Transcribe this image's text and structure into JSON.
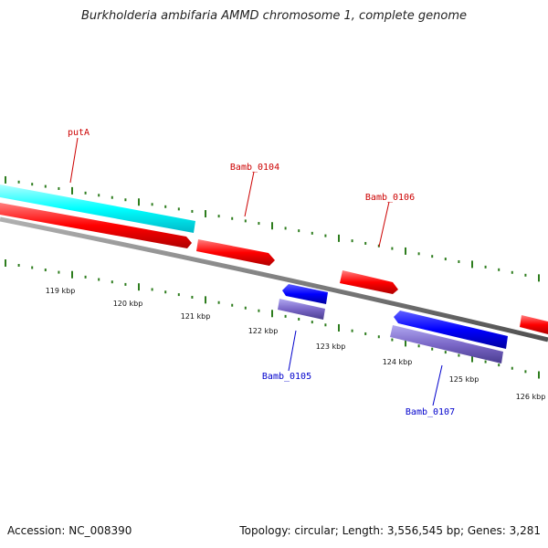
{
  "title": "Burkholderia ambifaria AMMD chromosome 1, complete genome",
  "footer": {
    "accession": "Accession: NC_008390",
    "summary": "Topology: circular; Length: 3,556,545 bp; Genes: 3,281"
  },
  "colors": {
    "forward_gene": "#ff0000",
    "reverse_gene": "#0000ff",
    "reverse_pseudo": "#7b68c8",
    "cyan_feature": "#00ffff",
    "backbone": "#808080",
    "tick": "#2e7d1e",
    "forward_label": "#cc0000",
    "reverse_label": "#0000cc"
  },
  "scale_labels": [
    "119 kbp",
    "120 kbp",
    "121 kbp",
    "122 kbp",
    "123 kbp",
    "124 kbp",
    "125 kbp",
    "126 kbp"
  ],
  "gene_labels": [
    {
      "name": "putA",
      "strand": "forward"
    },
    {
      "name": "Bamb_0104",
      "strand": "forward"
    },
    {
      "name": "Bamb_0106",
      "strand": "forward"
    },
    {
      "name": "Bamb_0105",
      "strand": "reverse"
    },
    {
      "name": "Bamb_0107",
      "strand": "reverse"
    }
  ]
}
